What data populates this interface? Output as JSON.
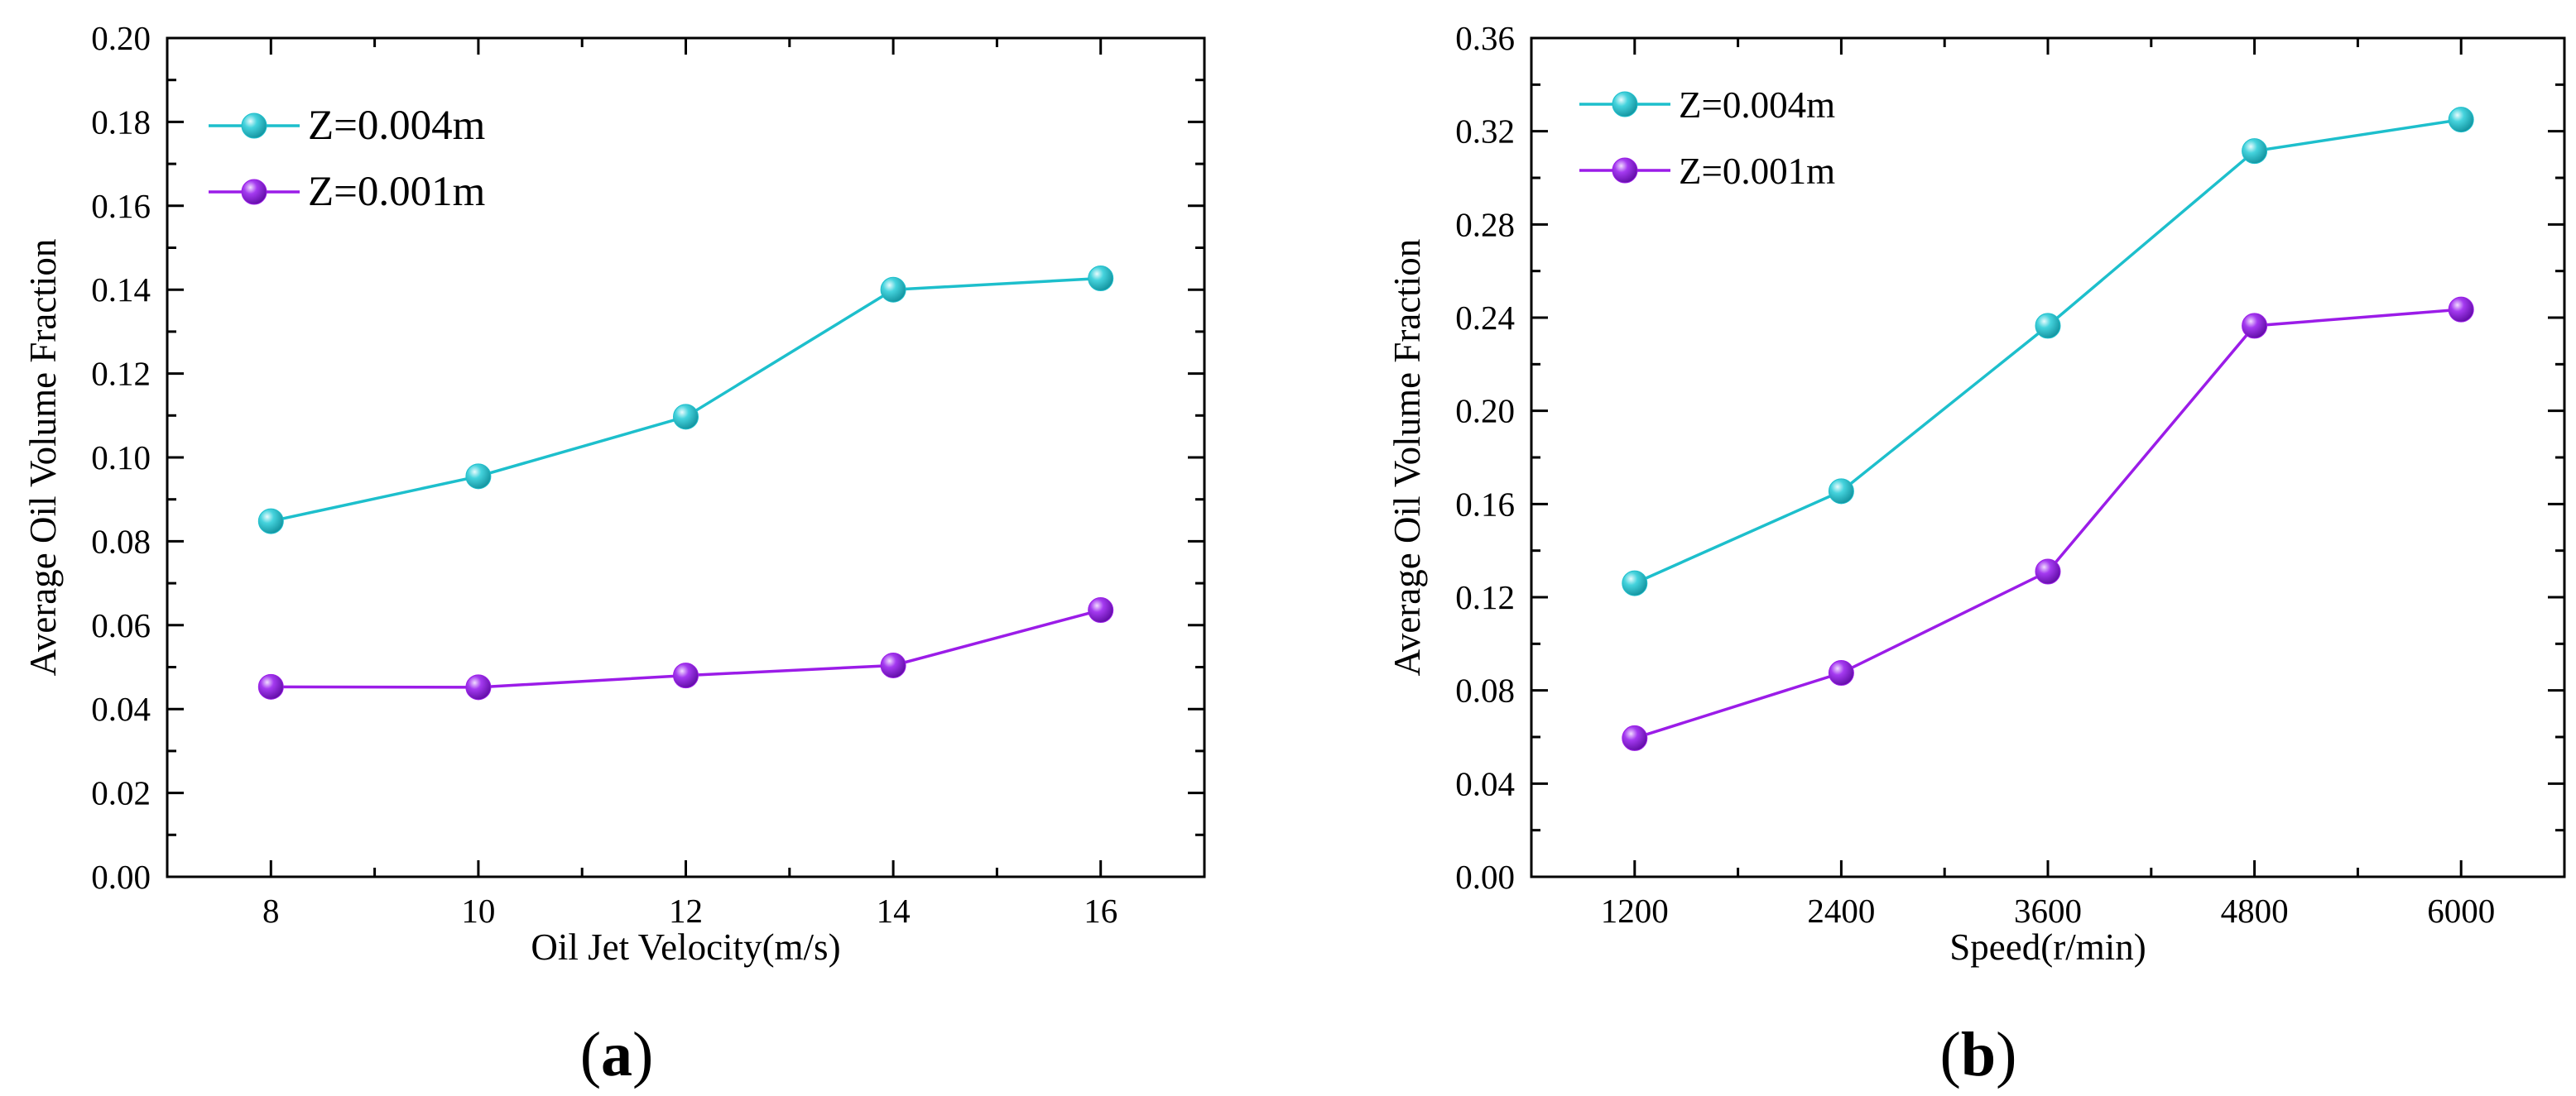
{
  "panels": [
    {
      "label_open": "(",
      "label_letter": "a",
      "label_close": ")"
    },
    {
      "label_open": "(",
      "label_letter": "b",
      "label_close": ")"
    }
  ],
  "colors": {
    "series_1": "#1dbfcc",
    "series_2": "#9b1ce8",
    "axis": "#000000"
  },
  "chart_data": [
    {
      "type": "line",
      "title": "",
      "xlabel": "Oil Jet Velocity(m/s)",
      "ylabel": "Average Oil Volume Fraction",
      "x": [
        8,
        10,
        12,
        14,
        16
      ],
      "x_tick_labels": [
        "8",
        "10",
        "12",
        "14",
        "16"
      ],
      "xlim": [
        7,
        17
      ],
      "ylim": [
        0,
        0.2
      ],
      "y_ticks": [
        0,
        0.02,
        0.04,
        0.06,
        0.08,
        0.1,
        0.12,
        0.14,
        0.16,
        0.18,
        0.2
      ],
      "y_tick_labels": [
        "0.00",
        "0.02",
        "0.04",
        "0.06",
        "0.08",
        "0.10",
        "0.12",
        "0.14",
        "0.16",
        "0.18",
        "0.20"
      ],
      "legend_position": "top-left",
      "grid": false,
      "series": [
        {
          "name": "Z=0.004m",
          "values": [
            0.0848,
            0.0955,
            0.1097,
            0.14,
            0.1427
          ]
        },
        {
          "name": "Z=0.001m",
          "values": [
            0.0453,
            0.0452,
            0.048,
            0.0504,
            0.0636
          ]
        }
      ]
    },
    {
      "type": "line",
      "title": "",
      "xlabel": "Speed(r/min)",
      "ylabel": "Average Oil Volume Fraction",
      "x": [
        1200,
        2400,
        3600,
        4800,
        6000
      ],
      "x_tick_labels": [
        "1200",
        "2400",
        "3600",
        "4800",
        "6000"
      ],
      "xlim": [
        600,
        6600
      ],
      "ylim": [
        0,
        0.36
      ],
      "y_ticks": [
        0,
        0.04,
        0.08,
        0.12,
        0.16,
        0.2,
        0.24,
        0.28,
        0.32,
        0.36
      ],
      "y_tick_labels": [
        "0.00",
        "0.04",
        "0.08",
        "0.12",
        "0.16",
        "0.20",
        "0.24",
        "0.28",
        "0.32",
        "0.36"
      ],
      "legend_position": "top-left",
      "grid": false,
      "series": [
        {
          "name": "Z=0.004m",
          "values": [
            0.126,
            0.1655,
            0.2365,
            0.3115,
            0.325
          ]
        },
        {
          "name": "Z=0.001m",
          "values": [
            0.0595,
            0.0875,
            0.131,
            0.2365,
            0.2435
          ]
        }
      ]
    }
  ]
}
